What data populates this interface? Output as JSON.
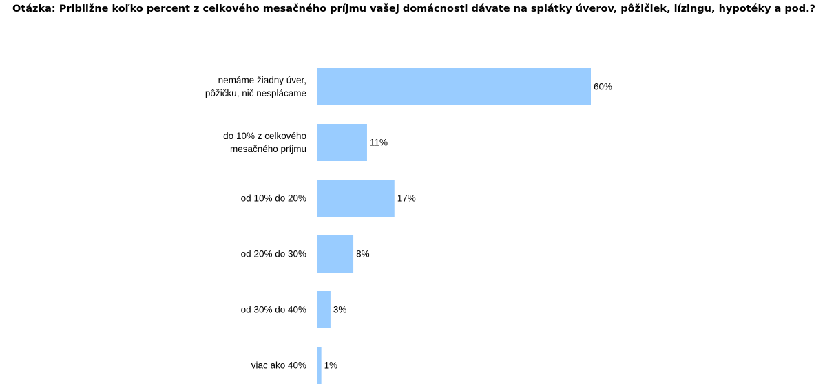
{
  "question": "Otázka: Približne koľko percent z celkového mesačného príjmu vašej domácnosti dávate na splátky úverov, pôžičiek, lízingu, hypotéky a pod.?",
  "chart_data": {
    "type": "bar",
    "orientation": "horizontal",
    "categories": [
      [
        "nemáme žiadny úver,",
        "pôžičku, nič nesplácame"
      ],
      [
        "do 10% z celkového",
        "mesačného príjmu"
      ],
      [
        "od 10%  do 20%"
      ],
      [
        "od 20%  do 30%"
      ],
      [
        "od 30%  do 40%"
      ],
      [
        "viac ako 40%"
      ]
    ],
    "values": [
      60,
      11,
      17,
      8,
      3,
      1
    ],
    "value_labels": [
      "60%",
      "11%",
      "17%",
      "8%",
      "3%",
      "1%"
    ],
    "unit": "%",
    "xlim": [
      0,
      100
    ],
    "bar_color": "#99ccff",
    "grid": false,
    "legend": "none"
  }
}
